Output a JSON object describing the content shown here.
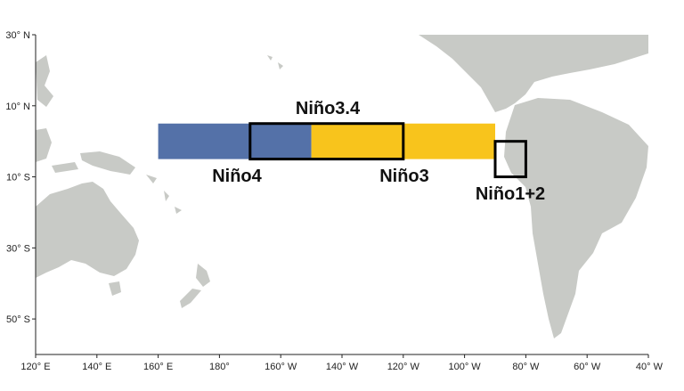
{
  "map": {
    "lon_range_deg_east": [
      120,
      320
    ],
    "lat_range_deg": [
      -60,
      30
    ],
    "colors": {
      "ocean": "#ffffff",
      "land": "#c8cac6",
      "nino4_fill": "#5471a8",
      "nino3_fill": "#f8c41c",
      "box_outline": "#000000"
    },
    "lat_ticks": [
      {
        "label": "30° N",
        "lat": 30
      },
      {
        "label": "10° N",
        "lat": 10
      },
      {
        "label": "10° S",
        "lat": -10
      },
      {
        "label": "30° S",
        "lat": -30
      },
      {
        "label": "50° S",
        "lat": -50
      }
    ],
    "lon_ticks": [
      {
        "label": "120° E",
        "lon": 120
      },
      {
        "label": "140° E",
        "lon": 140
      },
      {
        "label": "160° E",
        "lon": 160
      },
      {
        "label": "180°",
        "lon": 180
      },
      {
        "label": "160° W",
        "lon": 200
      },
      {
        "label": "140° W",
        "lon": 220
      },
      {
        "label": "120° W",
        "lon": 240
      },
      {
        "label": "100° W",
        "lon": 260
      },
      {
        "label": "80° W",
        "lon": 280
      },
      {
        "label": "60° W",
        "lon": 300
      },
      {
        "label": "40° W",
        "lon": 320
      }
    ],
    "regions": [
      {
        "name": "Niño4",
        "lon_min": 160,
        "lon_max": 210,
        "lat_min": -5,
        "lat_max": 5,
        "style": "fill-blue"
      },
      {
        "name": "Niño3",
        "lon_min": 210,
        "lon_max": 270,
        "lat_min": -5,
        "lat_max": 5,
        "style": "fill-yellow"
      },
      {
        "name": "Niño3.4",
        "lon_min": 190,
        "lon_max": 240,
        "lat_min": -5,
        "lat_max": 5,
        "style": "outline"
      },
      {
        "name": "Niño1+2",
        "lon_min": 270,
        "lon_max": 280,
        "lat_min": -10,
        "lat_max": 0,
        "style": "outline"
      }
    ],
    "labels": {
      "nino34": "Niño3.4",
      "nino4": "Niño4",
      "nino3": "Niño3",
      "nino12": "Niño1+2"
    }
  }
}
